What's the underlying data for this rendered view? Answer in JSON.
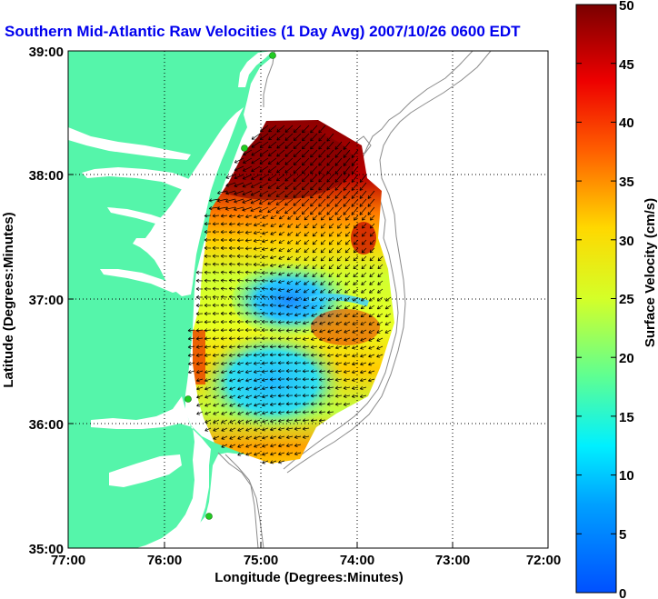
{
  "title": "Southern Mid-Atlantic Raw Velocities (1 Day Avg) 2007/10/26 0600 EDT",
  "map": {
    "x_axis": {
      "label": "Longitude (Degrees:Minutes)",
      "ticks": [
        "77:00",
        "76:00",
        "75:00",
        "74:00",
        "73:00",
        "72:00"
      ]
    },
    "y_axis": {
      "label": "Latitude (Degrees:Minutes)",
      "ticks": [
        "39:00",
        "38:00",
        "37:00",
        "36:00",
        "35:00"
      ]
    },
    "grid": "dotted",
    "land_color": "#55f5aa",
    "water_color": "#ffffff",
    "bathymetry_color": "#8a8a8a",
    "station_color": "#22cc22",
    "station_count": 4
  },
  "colorbar": {
    "label": "Surface Velocity (cm/s)",
    "ticks": [
      "0",
      "5",
      "10",
      "15",
      "20",
      "25",
      "30",
      "35",
      "40",
      "45",
      "50"
    ],
    "min": 0,
    "max": 50,
    "colormap": "jet"
  },
  "colors": {
    "title": "#0000ee"
  }
}
